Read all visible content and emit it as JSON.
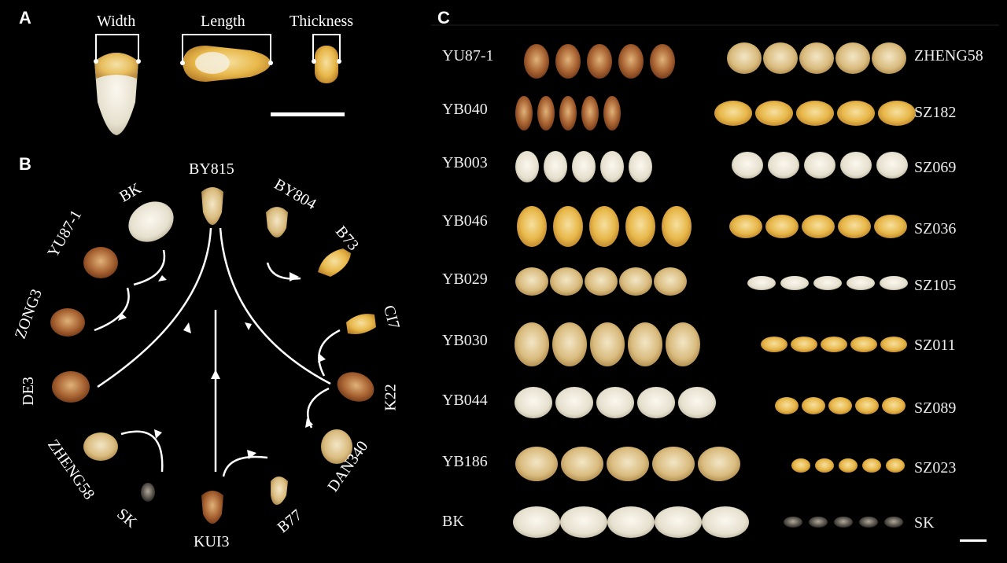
{
  "panels": {
    "a": "A",
    "b": "B",
    "c": "C"
  },
  "panel_a": {
    "width_label": "Width",
    "length_label": "Length",
    "thickness_label": "Thickness"
  },
  "panel_b": {
    "center": "BY815",
    "labels": {
      "bk": "BK",
      "by804": "BY804",
      "yu87": "YU87-1",
      "b73": "B73",
      "zong3": "ZONG3",
      "ci7": "CI7",
      "de3": "DE3",
      "k22": "K22",
      "zheng58": "ZHENG58",
      "dan340": "DAN340",
      "sk": "SK",
      "b77": "B77",
      "kui3": "KUI3"
    }
  },
  "panel_c": {
    "left_rows": [
      "YU87-1",
      "YB040",
      "YB003",
      "YB046",
      "YB029",
      "YB030",
      "YB044",
      "YB186",
      "BK"
    ],
    "right_rows": [
      "ZHENG58",
      "SZ182",
      "SZ069",
      "SZ036",
      "SZ105",
      "SZ011",
      "SZ089",
      "SZ023",
      "SK"
    ]
  },
  "colors": {
    "background": "#000000",
    "kernel_yellow": "#e8b84a",
    "kernel_white": "#e9e4d6",
    "kernel_brown": "#8a4a22"
  }
}
